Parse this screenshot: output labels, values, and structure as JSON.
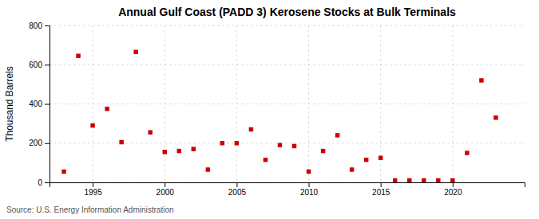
{
  "chart_data": {
    "type": "scatter",
    "title": "Annual Gulf Coast (PADD 3) Kerosene Stocks at Bulk Terminals",
    "ylabel": "Thousand Barrels",
    "source": "Source: U.S. Energy Information Administration",
    "x": [
      1993,
      1994,
      1995,
      1996,
      1997,
      1998,
      1999,
      2000,
      2001,
      2002,
      2003,
      2004,
      2005,
      2006,
      2007,
      2008,
      2009,
      2010,
      2011,
      2012,
      2013,
      2014,
      2015,
      2016,
      2017,
      2018,
      2019,
      2020,
      2021,
      2022,
      2023
    ],
    "values": [
      55,
      645,
      290,
      375,
      205,
      665,
      255,
      155,
      160,
      170,
      65,
      200,
      200,
      270,
      115,
      190,
      185,
      55,
      160,
      240,
      65,
      115,
      125,
      10,
      10,
      10,
      10,
      10,
      150,
      520,
      330
    ],
    "color": "#cc0000",
    "marker": "square",
    "xlim": [
      1992,
      2025
    ],
    "ylim": [
      0,
      800
    ],
    "xticks": [
      1995,
      2000,
      2005,
      2010,
      2015,
      2020
    ],
    "yticks": [
      0,
      200,
      400,
      600,
      800
    ],
    "grid": true
  }
}
